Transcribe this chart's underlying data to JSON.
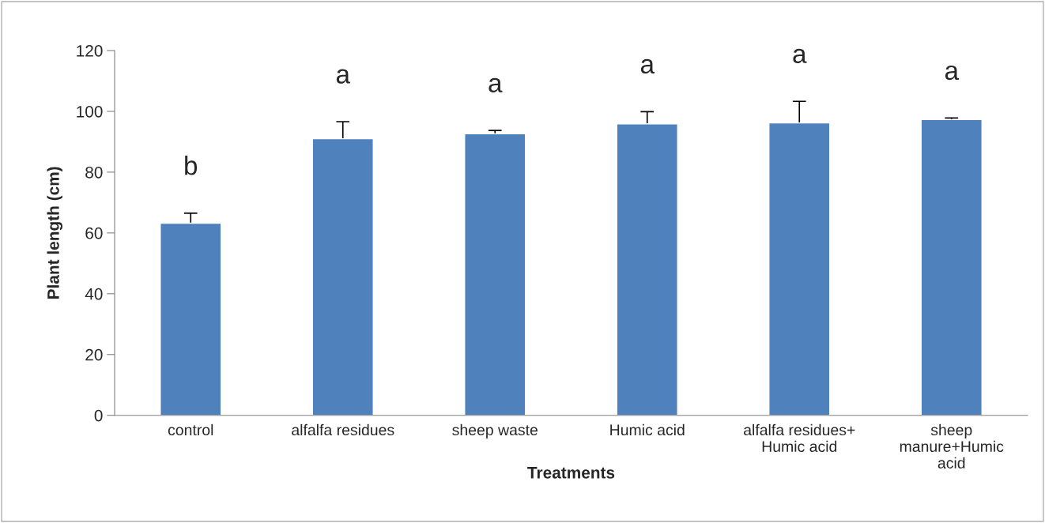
{
  "chart_data": {
    "type": "bar",
    "xlabel": "Treatments",
    "ylabel": "Plant length (cm)",
    "categories": [
      "control",
      "alfalfa residues",
      "sheep waste",
      "Humic acid",
      "alfalfa residues+\nHumic acid",
      "sheep\nmanure+Humic\nacid"
    ],
    "values": [
      63.2,
      91.0,
      92.6,
      95.9,
      96.2,
      97.3
    ],
    "errors": [
      3.3,
      5.6,
      1.1,
      4.0,
      7.1,
      0.5
    ],
    "color": "#4f81bd",
    "ylim": [
      0,
      120
    ],
    "yticks": [
      0,
      20,
      40,
      60,
      80,
      100,
      120
    ],
    "grid": false,
    "annotations": [
      "b",
      "a",
      "a",
      "a",
      "a",
      "a"
    ]
  }
}
